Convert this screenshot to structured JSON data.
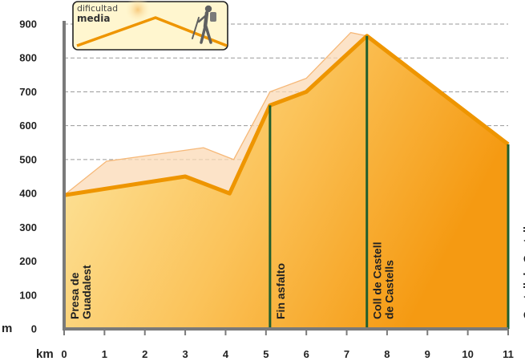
{
  "badge": {
    "line1": "dificultad",
    "line2": "media",
    "icon": "hiker-icon"
  },
  "chart_data": {
    "type": "area",
    "xlabel": "km",
    "ylabel": "m",
    "xlim": [
      0,
      11
    ],
    "ylim": [
      0,
      900
    ],
    "x_ticks": [
      "0",
      "1",
      "2",
      "3",
      "4",
      "5",
      "6",
      "7",
      "8",
      "9",
      "10",
      "11"
    ],
    "y_ticks": [
      "0",
      "100",
      "200",
      "300",
      "400",
      "500",
      "600",
      "700",
      "800",
      "900"
    ],
    "grid": "horizontal-dashed",
    "series": [
      {
        "x": [
          0,
          3,
          4.1,
          5.1,
          6,
          7.5,
          11
        ],
        "values": [
          395,
          450,
          400,
          660,
          700,
          865,
          545
        ]
      },
      {
        "x": [
          0,
          1.05,
          3.45,
          4.2,
          5.1,
          6,
          7.1,
          7.5
        ],
        "values": [
          395,
          495,
          535,
          500,
          700,
          740,
          875,
          865
        ]
      }
    ],
    "waypoints": [
      {
        "label": "Presa de Guadalest",
        "x": 0
      },
      {
        "label": "Fin asfalto",
        "x": 5.1
      },
      {
        "label": "Coll de Castell de Castells",
        "x": 7.5
      },
      {
        "label": "Castell de Castells",
        "x": 11
      }
    ],
    "colors": {
      "profile": "#ee9500",
      "fill_light": "#fde9a6",
      "fill_dark": "#f7a21b",
      "shadow": "#fbd9b5",
      "markers": "#1f5e2e",
      "axis": "#7a7a7a"
    }
  }
}
